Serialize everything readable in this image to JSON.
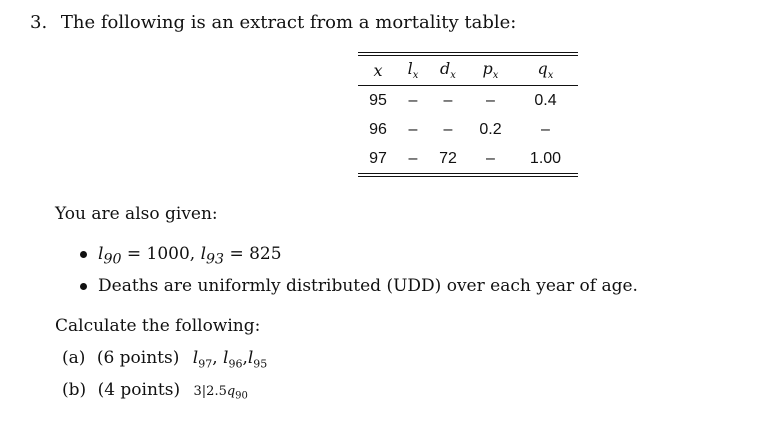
{
  "question": {
    "number": "3.",
    "intro": "The following is an extract from a mortality table:"
  },
  "table": {
    "headers": [
      "x",
      "l",
      "d",
      "p",
      "q"
    ],
    "header_subscript": "x",
    "rows": [
      [
        "95",
        "–",
        "–",
        "–",
        "0.4"
      ],
      [
        "96",
        "–",
        "–",
        "0.2",
        "–"
      ],
      [
        "97",
        "–",
        "72",
        "–",
        "1.00"
      ]
    ]
  },
  "given": {
    "label": "You are also given:",
    "bullet1": {
      "a_sym": "l",
      "a_sub": "90",
      "a_val": "= 1000,",
      "b_sym": "l",
      "b_sub": "93",
      "b_val": "= 825"
    },
    "bullet2": "Deaths are uniformly distributed (UDD) over each year of age."
  },
  "calculate": {
    "label": "Calculate the following:",
    "part_a": {
      "label": "(a)",
      "points": "(6 points)",
      "sym": "l",
      "sub1": "97",
      "sep1": ",",
      "sub2": "96",
      "sep2": ",",
      "sub3": "95"
    },
    "part_b": {
      "label": "(b)",
      "points": "(4 points)",
      "prefix": "3|2.5",
      "sym": "q",
      "sub": "90"
    }
  }
}
